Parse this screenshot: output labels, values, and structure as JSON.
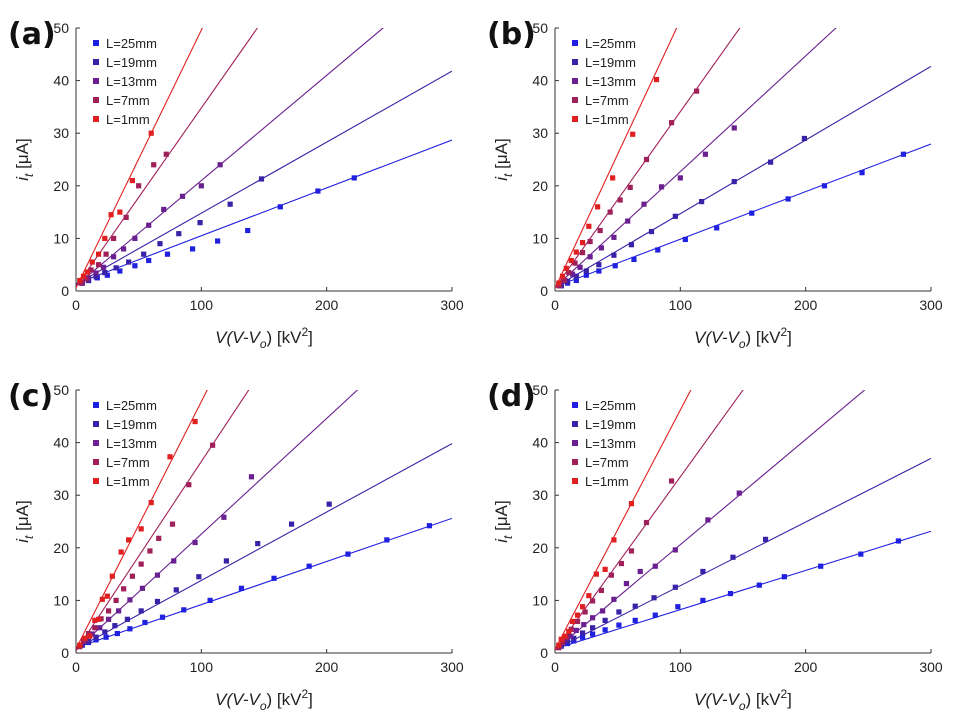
{
  "figure": {
    "x_axis": {
      "var": "V(V-V",
      "sub": "o",
      "rest": ") [kV",
      "sup": "2",
      "close": "]"
    },
    "y_axis": {
      "var": "i",
      "sub": "t",
      "unit": "[μA]"
    },
    "xticks": [
      "0",
      "100",
      "200",
      "300"
    ],
    "yticks": [
      "0",
      "10",
      "20",
      "30",
      "40",
      "50"
    ]
  },
  "series_colors": {
    "L=25mm": "#2020e0",
    "L=19mm": "#3a22a8",
    "L=13mm": "#6a2090",
    "L=7mm": "#a0205a",
    "L=1mm": "#e02020"
  },
  "chart_data": [
    {
      "type": "scatter",
      "panel": "(a)",
      "xlim": [
        0,
        300
      ],
      "ylim": [
        0,
        50
      ],
      "legend_position": "top-left",
      "series": [
        {
          "name": "L=25mm",
          "fit_slope": 0.091,
          "fit_intercept": 1.4,
          "x": [
            5,
            10,
            17,
            25,
            35,
            47,
            58,
            73,
            93,
            113,
            137,
            163,
            193,
            222
          ],
          "y": [
            1.5,
            2,
            2.5,
            3,
            3.8,
            4.8,
            5.8,
            7,
            8,
            9.5,
            11.5,
            16,
            19,
            21.5
          ]
        },
        {
          "name": "L=19mm",
          "fit_slope": 0.135,
          "fit_intercept": 1.3,
          "x": [
            5,
            10,
            16,
            23,
            32,
            42,
            54,
            67,
            82,
            99,
            123,
            148
          ],
          "y": [
            1.5,
            2,
            2.7,
            3.5,
            4.4,
            5.5,
            7,
            9,
            10.9,
            13,
            16.5,
            21.3
          ]
        },
        {
          "name": "L=13mm",
          "fit_slope": 0.2,
          "fit_intercept": 1.0,
          "x": [
            5,
            10,
            16,
            22,
            30,
            38,
            47,
            58,
            70,
            85,
            100,
            115
          ],
          "y": [
            1.5,
            2.5,
            3.4,
            4.5,
            6.5,
            8,
            10,
            12.5,
            15.5,
            18,
            20,
            24
          ]
        },
        {
          "name": "L=7mm",
          "fit_slope": 0.34,
          "fit_intercept": 0.8,
          "x": [
            4,
            8,
            12,
            18,
            24,
            30,
            40,
            50,
            62,
            72
          ],
          "y": [
            1.5,
            2.3,
            4,
            5,
            7,
            10,
            14,
            20,
            24,
            26
          ]
        },
        {
          "name": "L=1mm",
          "fit_slope": 0.49,
          "fit_intercept": 0.6,
          "x": [
            3,
            6,
            9,
            13,
            18,
            23,
            28,
            35,
            45,
            60
          ],
          "y": [
            2,
            2.8,
            3.6,
            5.5,
            7,
            10,
            14.5,
            15,
            21,
            30
          ]
        }
      ]
    },
    {
      "type": "scatter",
      "panel": "(b)",
      "xlim": [
        0,
        300
      ],
      "ylim": [
        0,
        50
      ],
      "legend_position": "top-left",
      "series": [
        {
          "name": "L=25mm",
          "fit_slope": 0.0905,
          "fit_intercept": 0.8,
          "x": [
            5,
            10,
            17,
            25,
            35,
            48,
            63,
            82,
            104,
            129,
            157,
            186,
            215,
            245,
            278
          ],
          "y": [
            1,
            1.5,
            2,
            3,
            3.8,
            4.8,
            6,
            7.8,
            9.8,
            12,
            14.8,
            17.5,
            20,
            22.5,
            26
          ]
        },
        {
          "name": "L=19mm",
          "fit_slope": 0.14,
          "fit_intercept": 0.7,
          "x": [
            5,
            10,
            17,
            25,
            35,
            47,
            61,
            77,
            96,
            117,
            143,
            172,
            199
          ],
          "y": [
            1,
            1.8,
            2.8,
            3.8,
            5,
            6.8,
            8.8,
            11.3,
            14.2,
            17,
            20.8,
            24.5,
            29
          ]
        },
        {
          "name": "L=13mm",
          "fit_slope": 0.22,
          "fit_intercept": 0.7,
          "x": [
            4,
            8,
            14,
            20,
            28,
            37,
            47,
            58,
            71,
            85,
            100,
            120,
            143
          ],
          "y": [
            1,
            2,
            3.2,
            4.5,
            6.5,
            8.2,
            10.2,
            13.3,
            16.5,
            19.8,
            21.5,
            26,
            31
          ]
        },
        {
          "name": "L=7mm",
          "fit_slope": 0.335,
          "fit_intercept": 0.6,
          "x": [
            3,
            7,
            11,
            16,
            22,
            28,
            36,
            44,
            52,
            60,
            73,
            93,
            113
          ],
          "y": [
            1,
            2,
            3.5,
            5.3,
            7.3,
            9.4,
            11.5,
            15,
            17.3,
            19.7,
            25,
            32,
            38
          ]
        },
        {
          "name": "L=1mm",
          "fit_slope": 0.51,
          "fit_intercept": 0.5,
          "x": [
            3,
            6,
            9,
            13,
            17,
            22,
            27,
            34,
            46,
            62,
            81
          ],
          "y": [
            1.5,
            2.8,
            4.3,
            5.8,
            7.4,
            9.2,
            12.3,
            16,
            21.5,
            29.8,
            40.2
          ]
        }
      ]
    },
    {
      "type": "scatter",
      "panel": "(c)",
      "xlim": [
        0,
        300
      ],
      "ylim": [
        0,
        50
      ],
      "legend_position": "top-left",
      "series": [
        {
          "name": "L=25mm",
          "fit_slope": 0.082,
          "fit_intercept": 1.0,
          "x": [
            5,
            10,
            16,
            24,
            33,
            43,
            55,
            69,
            86,
            107,
            132,
            158,
            186,
            217,
            248,
            282
          ],
          "y": [
            1.5,
            2,
            2.5,
            3,
            3.7,
            4.6,
            5.8,
            6.8,
            8.2,
            10,
            12.3,
            14.2,
            16.5,
            18.8,
            21.5,
            24.2
          ]
        },
        {
          "name": "L=19mm",
          "fit_slope": 0.13,
          "fit_intercept": 0.8,
          "x": [
            5,
            10,
            16,
            23,
            31,
            41,
            52,
            65,
            80,
            98,
            120,
            145,
            172,
            202
          ],
          "y": [
            1.5,
            2.2,
            3,
            4,
            5.2,
            6.4,
            8,
            9.8,
            12,
            14.5,
            17.5,
            20.8,
            24.5,
            28.3
          ]
        },
        {
          "name": "L=13mm",
          "fit_slope": 0.22,
          "fit_intercept": 0.6,
          "x": [
            4,
            8,
            13,
            19,
            26,
            34,
            43,
            53,
            65,
            78,
            95,
            118,
            140
          ],
          "y": [
            1.5,
            2.5,
            3.6,
            4.8,
            6.4,
            8,
            10.1,
            12.3,
            14.8,
            17.5,
            21,
            25.8,
            33.5
          ]
        },
        {
          "name": "L=7mm",
          "fit_slope": 0.36,
          "fit_intercept": 0.4,
          "x": [
            3,
            6,
            10,
            15,
            20,
            26,
            32,
            38,
            45,
            52,
            59,
            66,
            77,
            90,
            109
          ],
          "y": [
            1.2,
            2.3,
            3.7,
            4.8,
            6.5,
            8,
            10,
            12.2,
            14.6,
            16.9,
            19.4,
            21.8,
            24.5,
            32,
            39.5
          ]
        },
        {
          "name": "L=1mm",
          "fit_slope": 0.47,
          "fit_intercept": 0.8,
          "x": [
            3,
            7,
            11,
            15,
            18,
            21,
            25,
            29,
            36,
            42,
            52,
            60,
            75,
            95
          ],
          "y": [
            1.5,
            2.8,
            3.2,
            6.2,
            6.4,
            10.2,
            10.8,
            14.6,
            19.2,
            21.5,
            23.6,
            28.6,
            37.3,
            44
          ]
        }
      ]
    },
    {
      "type": "scatter",
      "panel": "(d)",
      "xlim": [
        0,
        300
      ],
      "ylim": [
        0,
        50
      ],
      "legend_position": "top-left",
      "series": [
        {
          "name": "L=25mm",
          "fit_slope": 0.0745,
          "fit_intercept": 0.8,
          "x": [
            5,
            10,
            15,
            22,
            30,
            40,
            51,
            64,
            80,
            98,
            118,
            140,
            163,
            183,
            212,
            244,
            274
          ],
          "y": [
            1.3,
            1.8,
            2.3,
            3,
            3.6,
            4.4,
            5.3,
            6.2,
            7.2,
            8.8,
            10,
            11.3,
            12.9,
            14.5,
            16.5,
            18.8,
            21.3
          ]
        },
        {
          "name": "L=19mm",
          "fit_slope": 0.121,
          "fit_intercept": 0.7,
          "x": [
            5,
            10,
            15,
            22,
            30,
            40,
            51,
            64,
            79,
            96,
            118,
            142,
            168
          ],
          "y": [
            1.5,
            2.2,
            2.8,
            3.8,
            4.8,
            6.2,
            7.8,
            8.9,
            10.5,
            12.5,
            15.5,
            18.2,
            21.6
          ]
        },
        {
          "name": "L=13mm",
          "fit_slope": 0.2,
          "fit_intercept": 0.6,
          "x": [
            4,
            8,
            12,
            17,
            23,
            30,
            38,
            47,
            57,
            68,
            80,
            96,
            122,
            147
          ],
          "y": [
            1.3,
            2.5,
            3.2,
            4.3,
            5.4,
            6.7,
            8,
            10.2,
            13.2,
            15.5,
            16.5,
            19.6,
            25.3,
            30.4
          ]
        },
        {
          "name": "L=7mm",
          "fit_slope": 0.33,
          "fit_intercept": 0.5,
          "x": [
            3,
            6,
            9,
            13,
            18,
            24,
            30,
            37,
            45,
            53,
            61,
            73,
            93
          ],
          "y": [
            1,
            2,
            3,
            4.5,
            6,
            7.8,
            9.9,
            11.9,
            14.8,
            17,
            19.4,
            24.8,
            32.7
          ]
        },
        {
          "name": "L=1mm",
          "fit_slope": 0.455,
          "fit_intercept": 0.7,
          "x": [
            3,
            5,
            8,
            11,
            14,
            18,
            22,
            27,
            33,
            40,
            47,
            61
          ],
          "y": [
            1.5,
            2.6,
            3.2,
            4.1,
            6,
            7.2,
            8.8,
            10.9,
            15,
            15.9,
            21.5,
            28.4
          ]
        }
      ]
    }
  ]
}
